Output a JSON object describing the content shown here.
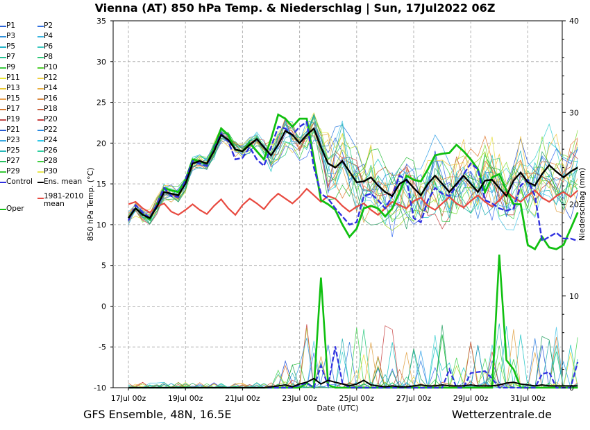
{
  "title": "Vienna  (AT)  850 hPa Temp. & Niederschlag | Sun, 17Jul2022 06Z",
  "footer_left": "GFS Ensemble, 48N, 16.5E",
  "footer_right": "Wetterzentrale.de",
  "chart_data": {
    "type": "line",
    "xlabel": "Date (UTC)",
    "ylabel_left": "850 hPa Temp. (°C)",
    "ylabel_right": "Niederschlag (mm)",
    "y_left_range": [
      -10,
      35
    ],
    "y_right_range": [
      0,
      40
    ],
    "y_left_ticks": [
      "35",
      "30",
      "25",
      "20",
      "15",
      "10",
      "5",
      "0",
      "-5",
      "-10"
    ],
    "y_right_ticks": [
      "40",
      "30",
      "20",
      "10",
      "0"
    ],
    "x_ticks": [
      "17Jul 00z",
      "19Jul 00z",
      "21Jul 00z",
      "23Jul 00z",
      "25Jul 00z",
      "27Jul 00z",
      "29Jul 00z",
      "31Jul 00z"
    ],
    "grid": true,
    "legend_position": "left",
    "member_colors": [
      "#1f4fd6",
      "#2f7de0",
      "#17c3c3",
      "#3ed0d0",
      "#25c87a",
      "#3cd34a",
      "#80dd3a",
      "#a8d82a",
      "#e8e040",
      "#f2c440",
      "#e0a040",
      "#e07a30",
      "#c85a30",
      "#c84040",
      "#3a6ef0",
      "#30a0e8",
      "#4cc8e8",
      "#20b0b0",
      "#22a060",
      "#30c040"
    ],
    "legend": [
      {
        "label": "P1",
        "color": "#2a62d6"
      },
      {
        "label": "P2",
        "color": "#3070e0"
      },
      {
        "label": "P3",
        "color": "#2f8fd8"
      },
      {
        "label": "P4",
        "color": "#3ab4e0"
      },
      {
        "label": "P5",
        "color": "#23b3c8"
      },
      {
        "label": "P6",
        "color": "#3cc9c0"
      },
      {
        "label": "P7",
        "color": "#25c090"
      },
      {
        "label": "P8",
        "color": "#30c878"
      },
      {
        "label": "P9",
        "color": "#39c840"
      },
      {
        "label": "P10",
        "color": "#50d030"
      },
      {
        "label": "P11",
        "color": "#e8e830"
      },
      {
        "label": "P12",
        "color": "#f0d040"
      },
      {
        "label": "P13",
        "color": "#e8c830"
      },
      {
        "label": "P14",
        "color": "#e8b040"
      },
      {
        "label": "P15",
        "color": "#e8a050"
      },
      {
        "label": "P16",
        "color": "#d88840"
      },
      {
        "label": "P17",
        "color": "#d87830"
      },
      {
        "label": "P18",
        "color": "#c86040"
      },
      {
        "label": "P19",
        "color": "#c04848"
      },
      {
        "label": "P20",
        "color": "#c83c3c"
      },
      {
        "label": "P21",
        "color": "#2a5ad0"
      },
      {
        "label": "P22",
        "color": "#2a8ae0"
      },
      {
        "label": "P23",
        "color": "#3aa8e0"
      },
      {
        "label": "P24",
        "color": "#30c8e8"
      },
      {
        "label": "P25",
        "color": "#28b8b8"
      },
      {
        "label": "P26",
        "color": "#30d0a0"
      },
      {
        "label": "P27",
        "color": "#28c060"
      },
      {
        "label": "P28",
        "color": "#40d040"
      },
      {
        "label": "P29",
        "color": "#38c838"
      },
      {
        "label": "P30",
        "color": "#e8e850"
      },
      {
        "label": "Control",
        "color": "#3030e0"
      },
      {
        "label": "Ens. mean",
        "color": "#000000"
      },
      {
        "label": "1981-2010 mean",
        "color": "#e84a40"
      },
      {
        "label": "Oper",
        "color": "#10c010"
      }
    ],
    "ens_mean_temp": [
      10.8,
      12.0,
      11.2,
      10.8,
      12.2,
      14.0,
      13.8,
      13.6,
      15.0,
      17.5,
      17.8,
      17.5,
      19.0,
      21.0,
      20.4,
      19.2,
      19.0,
      19.8,
      20.5,
      19.5,
      18.5,
      19.8,
      21.5,
      21.0,
      20.0,
      21.0,
      21.8,
      19.5,
      17.5,
      17.0,
      17.8,
      16.5,
      15.2,
      15.3,
      15.8,
      14.8,
      14.0,
      13.5,
      15.0,
      15.5,
      14.5,
      13.6,
      15.0,
      16.0,
      15.0,
      14.0,
      15.0,
      16.0,
      15.0,
      14.0,
      15.4,
      15.5,
      14.5,
      13.5,
      15.4,
      16.4,
      15.2,
      14.8,
      16.2,
      17.3,
      16.5,
      15.8,
      16.5,
      17.0
    ],
    "climate_mean_temp": [
      12.5,
      12.8,
      12.0,
      11.5,
      12.2,
      12.6,
      11.6,
      11.2,
      11.8,
      12.5,
      11.8,
      11.3,
      12.3,
      13.1,
      12.0,
      11.2,
      12.4,
      13.2,
      12.6,
      11.9,
      13.0,
      13.8,
      13.2,
      12.6,
      13.4,
      14.4,
      13.6,
      12.8,
      13.5,
      13.2,
      12.3,
      11.6,
      12.2,
      12.6,
      11.8,
      11.2,
      12.0,
      12.8,
      12.4,
      12.0,
      12.9,
      13.3,
      12.3,
      11.8,
      12.6,
      13.4,
      12.6,
      12.1,
      12.9,
      13.6,
      12.8,
      12.2,
      13.0,
      14.1,
      13.3,
      12.8,
      13.6,
      14.2,
      13.3,
      12.8,
      13.5,
      14.0,
      13.4,
      14.2
    ],
    "control_temp": [
      10.5,
      12.4,
      11.5,
      10.8,
      12.5,
      14.5,
      13.5,
      13.4,
      15.5,
      17.8,
      17.5,
      17.2,
      19.2,
      21.2,
      20.2,
      18.0,
      18.2,
      19.5,
      18.0,
      17.2,
      19.5,
      22.0,
      21.8,
      21.0,
      22.0,
      22.6,
      17.0,
      13.8,
      13.2,
      12.0,
      11.0,
      10.0,
      10.3,
      13.5,
      13.8,
      13.0,
      12.0,
      13.5,
      16.0,
      15.5,
      10.8,
      10.3,
      13.0,
      14.5,
      13.8,
      13.5,
      14.8,
      16.2,
      17.5,
      16.8,
      13.0,
      12.6,
      12.0,
      11.7,
      12.0,
      14.8,
      15.5,
      13.5,
      8.0,
      8.5,
      9.0,
      8.3,
      8.3,
      8.0
    ],
    "oper_temp": [
      10.8,
      12.0,
      11.3,
      10.6,
      12.5,
      14.5,
      14.2,
      14.0,
      15.5,
      18.0,
      17.8,
      17.4,
      19.5,
      21.8,
      21.0,
      19.2,
      19.0,
      20.0,
      19.0,
      18.0,
      20.5,
      23.5,
      23.0,
      22.0,
      23.0,
      23.0,
      18.0,
      13.0,
      12.5,
      11.8,
      10.0,
      8.5,
      9.5,
      12.0,
      12.3,
      12.0,
      11.0,
      12.0,
      14.0,
      16.0,
      15.5,
      15.3,
      16.8,
      18.5,
      18.7,
      18.8,
      19.8,
      19.0,
      18.0,
      16.8,
      14.0,
      15.8,
      16.2,
      14.2,
      12.5,
      12.5,
      7.5,
      7.0,
      8.5,
      7.2,
      7.0,
      7.5,
      9.5,
      11.5
    ],
    "oper_precip": [
      0,
      0,
      0,
      0,
      0,
      0,
      0,
      0,
      0,
      0,
      0,
      0,
      0,
      0,
      0,
      0,
      0,
      0,
      0,
      0,
      0,
      0,
      0,
      0,
      0,
      0.5,
      0,
      12.0,
      0.3,
      0,
      0,
      0,
      0,
      0,
      0,
      0,
      0,
      0,
      0,
      0,
      0,
      0,
      0,
      0,
      0,
      0,
      0,
      0,
      0,
      0,
      0,
      0,
      14.5,
      3.0,
      2.0,
      0,
      0,
      0,
      0,
      0,
      0,
      0,
      0,
      0
    ],
    "control_precip": [
      0,
      0,
      0,
      0,
      0,
      0,
      0,
      0,
      0,
      0,
      0,
      0,
      0,
      0,
      0,
      0,
      0,
      0,
      0,
      0,
      0,
      0,
      0,
      0,
      0.3,
      0.5,
      0,
      2.4,
      0.2,
      4.5,
      0.5,
      0,
      0,
      0,
      0,
      0,
      0,
      0,
      0,
      0,
      0,
      0,
      0,
      0,
      0,
      2.0,
      0,
      0,
      1.6,
      1.7,
      1.8,
      1.0,
      0,
      0,
      0,
      0,
      0,
      0,
      1.5,
      1.7,
      0,
      0,
      0,
      2.8
    ],
    "ens_mean_precip": [
      0,
      0,
      0,
      0,
      0,
      0,
      0,
      0,
      0,
      0,
      0,
      0,
      0,
      0,
      0,
      0,
      0,
      0,
      0,
      0,
      0.1,
      0.2,
      0.3,
      0.1,
      0.4,
      0.6,
      1.0,
      0.4,
      0.8,
      0.6,
      0.4,
      0.2,
      0.4,
      0.8,
      0.3,
      0.2,
      0.1,
      0.2,
      0.1,
      0.1,
      0.2,
      0.3,
      0.2,
      0.2,
      0.3,
      0.2,
      0.2,
      0.2,
      0.3,
      0.2,
      0.2,
      0.2,
      0.3,
      0.5,
      0.6,
      0.4,
      0.3,
      0.2,
      0.3,
      0.2,
      0.2,
      0.2,
      0.2,
      0.2
    ]
  }
}
